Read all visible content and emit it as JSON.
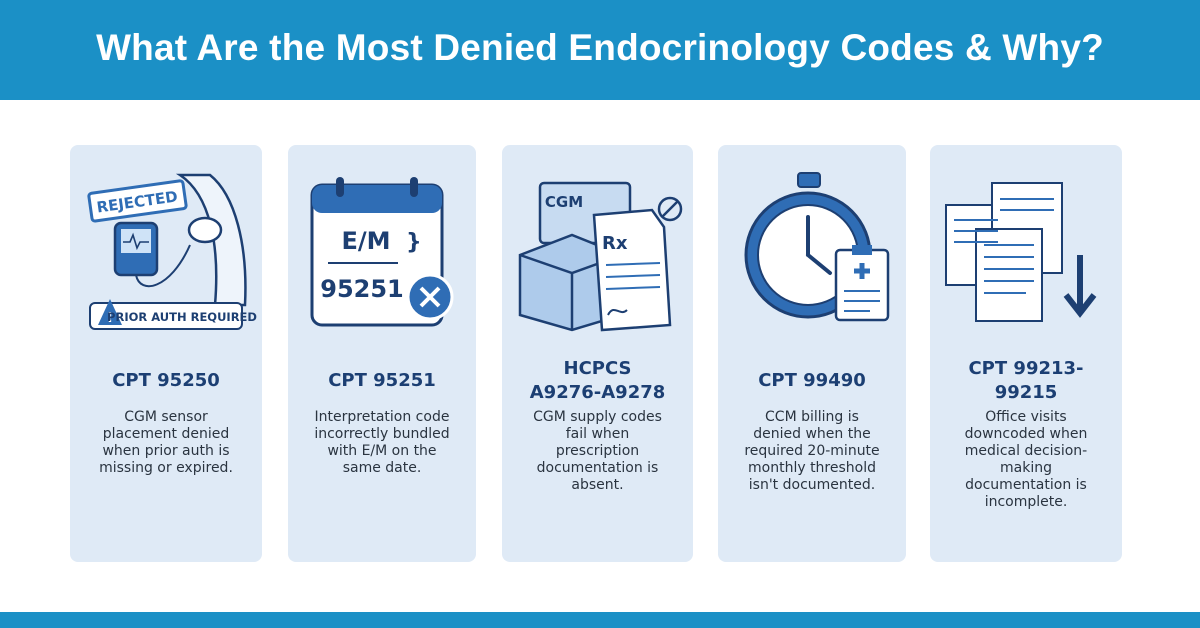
{
  "header": {
    "title": "What Are the Most Denied Endocrinology Codes & Why?"
  },
  "cards": [
    {
      "code": "CPT 95250",
      "description": "CGM sensor placement denied when prior auth is missing or expired.",
      "icon_labels": [
        "REJECTED",
        "PRIOR AUTH REQUIRED"
      ]
    },
    {
      "code": "CPT 95251",
      "description": "Interpretation code incorrectly bundled with E/M on the same date.",
      "icon_labels": [
        "E/M",
        "95251"
      ]
    },
    {
      "code": "HCPCS A9276-A9278",
      "description": "CGM supply codes fail when prescription documentation is absent.",
      "icon_labels": [
        "CGM",
        "Rx"
      ]
    },
    {
      "code": "CPT 99490",
      "description": "CCM billing is denied when the required 20-minute monthly threshold isn't documented."
    },
    {
      "code": "CPT 99213-99215",
      "description": "Office visits downcoded when medical decision-making documentation is incomplete."
    }
  ]
}
